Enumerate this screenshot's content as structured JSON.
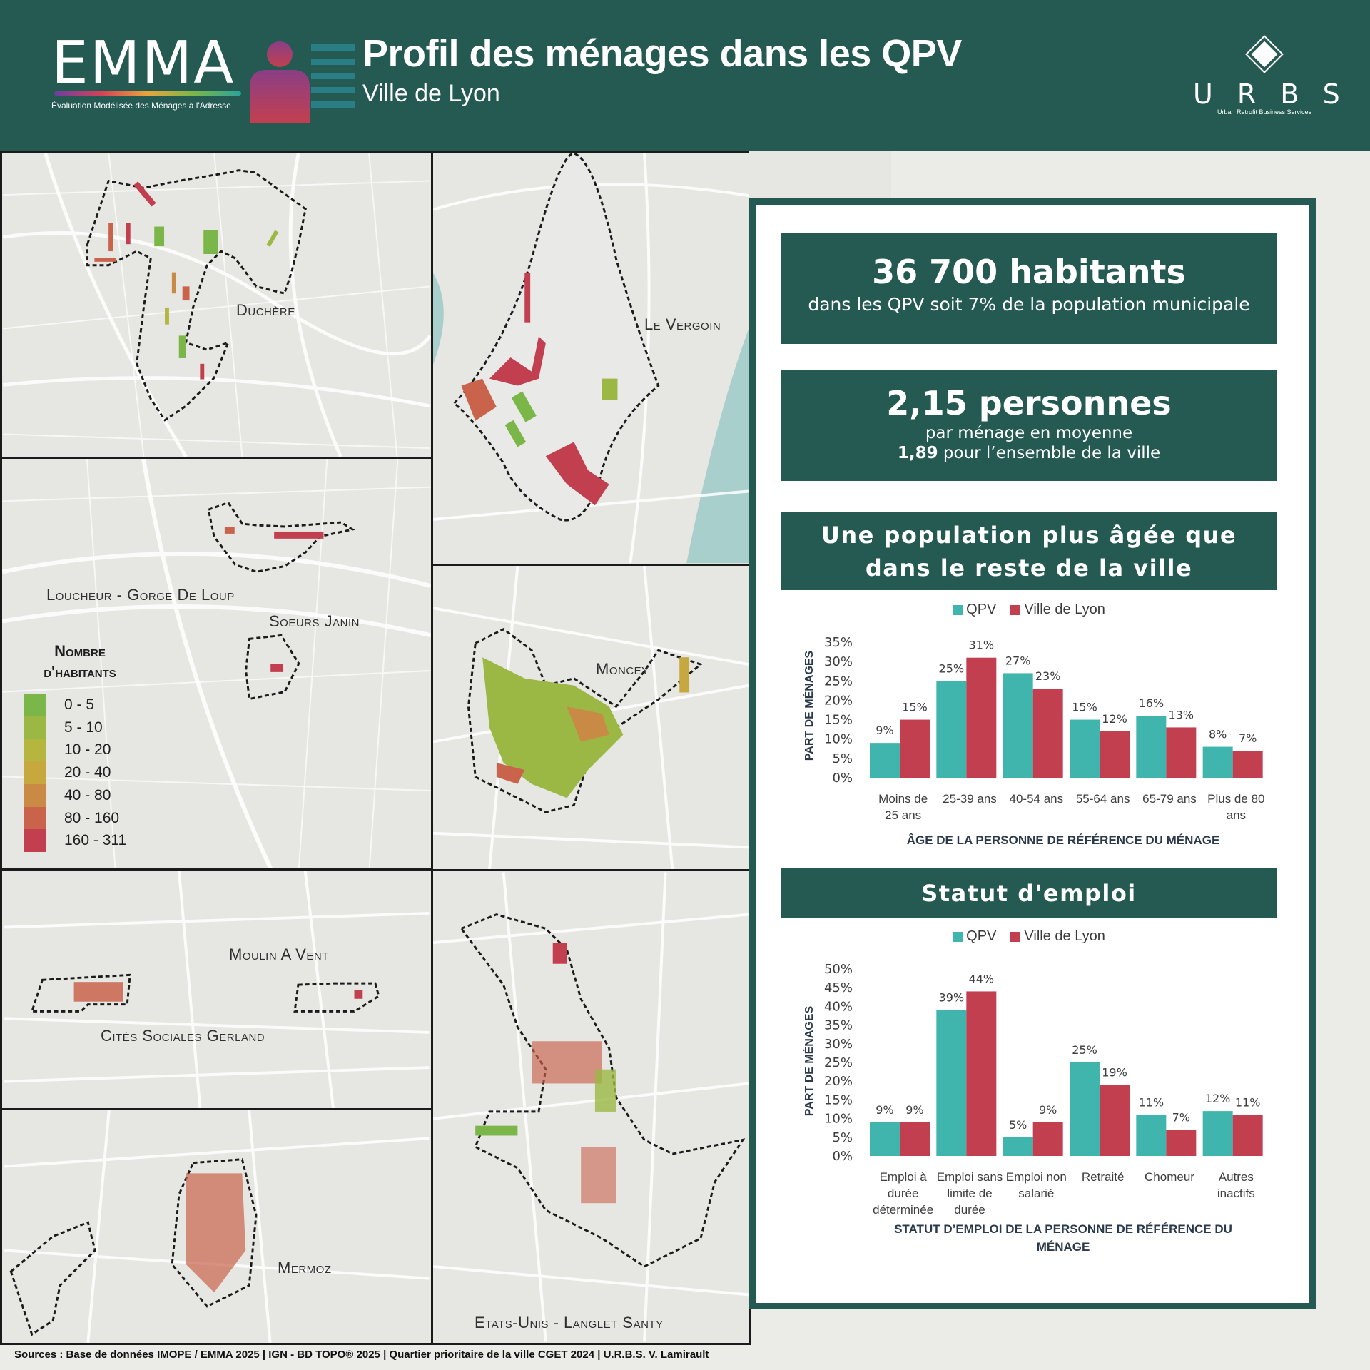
{
  "header": {
    "logo_text": "EMMA",
    "logo_subtitle": "Évaluation Modélisée des Ménages à l'Adresse",
    "title": "Profil des ménages dans les QPV",
    "subtitle": "Ville de Lyon",
    "urbs_letters": "URBS",
    "urbs_subtitle": "Urban Retrofit Business Services"
  },
  "map": {
    "labels": {
      "duchere": "Duchère",
      "vergoin": "Le Vergoin",
      "loucheur": "Loucheur - Gorge De Loup",
      "soeurs": "Soeurs Janin",
      "moncey": "Moncey",
      "moulin": "Moulin A Vent",
      "gerland": "Cités Sociales Gerland",
      "mermoz": "Mermoz",
      "etats": "Etats-Unis - Langlet Santy"
    },
    "legend": {
      "title_line1": "Nombre",
      "title_line2": "d'habitants",
      "classes": [
        {
          "label": "0 - 5",
          "color": "#7ab648"
        },
        {
          "label": "5 - 10",
          "color": "#9bb844"
        },
        {
          "label": "10 - 20",
          "color": "#b4b640"
        },
        {
          "label": "20 - 40",
          "color": "#c6a83f"
        },
        {
          "label": "40 - 80",
          "color": "#c98a45"
        },
        {
          "label": "80 - 160",
          "color": "#c9634c"
        },
        {
          "label": "160 - 311",
          "color": "#c23f50"
        }
      ]
    }
  },
  "info": {
    "box1": {
      "big": "36 700 habitants",
      "line": "dans les QPV soit 7% de la population municipale"
    },
    "box2": {
      "big": "2,15 personnes",
      "line1": "par ménage en moyenne",
      "line2_bold": "1,89",
      "line2_rest": " pour l’ensemble de la ville"
    },
    "box3": {
      "line1": "Une population plus âgée que",
      "line2": "dans le reste de la ville"
    },
    "box4": {
      "title": "Statut d'emploi"
    },
    "series_legend": {
      "qpv": "QPV",
      "lyon": "Ville de Lyon",
      "qpv_color": "#3fb5ad",
      "lyon_color": "#c23f50"
    }
  },
  "chart_data": [
    {
      "type": "bar",
      "categories": [
        "Moins de 25 ans",
        "25-39 ans",
        "40-54 ans",
        "55-64 ans",
        "65-79 ans",
        "Plus de 80 ans"
      ],
      "series": [
        {
          "name": "QPV",
          "values": [
            9,
            25,
            27,
            15,
            16,
            8
          ]
        },
        {
          "name": "Ville de Lyon",
          "values": [
            15,
            31,
            23,
            12,
            13,
            7
          ]
        }
      ],
      "ylim": [
        0,
        35
      ],
      "yticks": [
        0,
        5,
        10,
        15,
        20,
        25,
        30,
        35
      ],
      "ylabel": "PART DE MÉNAGES",
      "xlabel": "ÂGE DE LA PERSONNE DE RÉFÉRENCE  DU MÉNAGE",
      "legend": "top"
    },
    {
      "type": "bar",
      "categories": [
        "Emploi à durée déterminée",
        "Emploi sans limite de durée",
        "Emploi non salarié",
        "Retraité",
        "Chomeur",
        "Autres inactifs"
      ],
      "series": [
        {
          "name": "QPV",
          "values": [
            9,
            39,
            5,
            25,
            11,
            12
          ]
        },
        {
          "name": "Ville de Lyon",
          "values": [
            9,
            44,
            9,
            19,
            7,
            11
          ]
        }
      ],
      "ylim": [
        0,
        50
      ],
      "yticks": [
        0,
        5,
        10,
        15,
        20,
        25,
        30,
        35,
        40,
        45,
        50
      ],
      "ylabel": "PART DE MÉNAGES",
      "xlabel": "STATUT D’EMPLOI DE LA PERSONNE DE RÉFÉRENCE DU MÉNAGE",
      "legend": "top"
    }
  ],
  "age_cat_lines": [
    [
      "Moins de",
      "25 ans"
    ],
    [
      "25-39 ans"
    ],
    [
      "40-54 ans"
    ],
    [
      "55-64 ans"
    ],
    [
      "65-79 ans"
    ],
    [
      "Plus de 80",
      "ans"
    ]
  ],
  "emp_cat_lines": [
    [
      "Emploi à",
      "durée",
      "déterminée"
    ],
    [
      "Emploi sans",
      "limite de",
      "durée"
    ],
    [
      "Emploi non",
      "salarié"
    ],
    [
      "Retraité"
    ],
    [
      "Chomeur"
    ],
    [
      "Autres",
      "inactifs"
    ]
  ],
  "xtitle_age": "ÂGE DE LA PERSONNE DE RÉFÉRENCE  DU MÉNAGE",
  "xtitle_emp_line1": "STATUT D’EMPLOI DE LA PERSONNE DE RÉFÉRENCE DU",
  "xtitle_emp_line2": "MÉNAGE",
  "ylabel": "PART DE MÉNAGES",
  "sources": "Sources : Base de données IMOPE / EMMA 2025 | IGN - BD TOPO® 2025 | Quartier prioritaire de la ville CGET 2024 | U.R.B.S. V. Lamirault"
}
